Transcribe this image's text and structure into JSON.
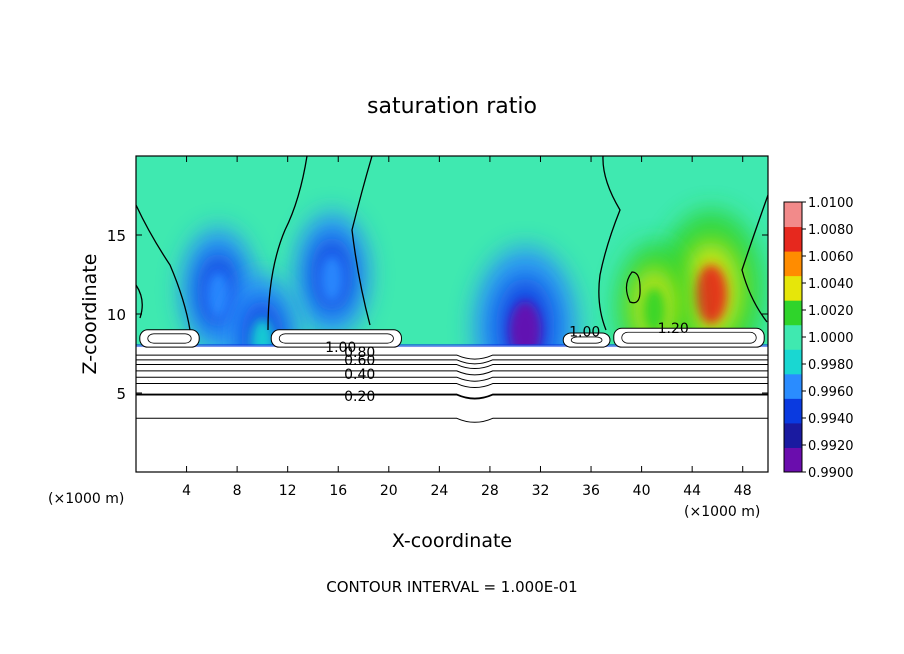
{
  "chart_data": {
    "type": "heatmap",
    "title": "saturation ratio",
    "xlabel": "X-coordinate",
    "ylabel": "Z-coordinate",
    "x_unit_left": "(×1000 m)",
    "x_unit_right": "(×1000 m)",
    "xlim": [
      0,
      50
    ],
    "ylim": [
      0,
      20
    ],
    "x_ticks": [
      4,
      8,
      12,
      16,
      20,
      24,
      28,
      32,
      36,
      40,
      44,
      48
    ],
    "x_tick_labels": [
      "4",
      "8",
      "12",
      "16",
      "20",
      "24",
      "28",
      "32",
      "36",
      "40",
      "44",
      "48"
    ],
    "y_ticks": [
      5,
      10,
      15
    ],
    "y_tick_labels": [
      "5",
      "10",
      "15"
    ],
    "footer": "CONTOUR INTERVAL = 1.000E-01",
    "colorbar": {
      "levels": [
        0.99,
        0.992,
        0.994,
        0.996,
        0.998,
        1.0,
        1.002,
        1.004,
        1.006,
        1.008,
        1.01
      ],
      "labels": [
        "0.9900",
        "0.9920",
        "0.9940",
        "0.9960",
        "0.9980",
        "1.0000",
        "1.0020",
        "1.0040",
        "1.0060",
        "1.0080",
        "1.0100"
      ],
      "colors": [
        "#6a0dad",
        "#1a1aa0",
        "#0a3ae0",
        "#2a8cff",
        "#19d7d2",
        "#3fe9b0",
        "#2fd42b",
        "#e6e60a",
        "#ff8c00",
        "#e6281e",
        "#f28a8a"
      ]
    },
    "contour_labels": [
      {
        "text": "0.20",
        "x": 17.7,
        "z": 4.8
      },
      {
        "text": "0.40",
        "x": 17.7,
        "z": 6.2
      },
      {
        "text": "0.60",
        "x": 17.7,
        "z": 7.1
      },
      {
        "text": "0.80",
        "x": 17.7,
        "z": 7.6
      },
      {
        "text": "1.00",
        "x": 16.2,
        "z": 7.9
      },
      {
        "text": "1.00",
        "x": 35.5,
        "z": 8.9
      },
      {
        "text": "1.20",
        "x": 42.5,
        "z": 9.1
      }
    ],
    "layer_contours_z": [
      3.4,
      4.9,
      5.6,
      6.0,
      6.4,
      6.8,
      7.1,
      7.4
    ],
    "anomalies": [
      {
        "x": 45.5,
        "z": 11.5,
        "value": 1.01
      },
      {
        "x": 30.8,
        "z": 9.2,
        "value": 0.992
      },
      {
        "x": 6.5,
        "z": 11.5,
        "value": 0.9965
      },
      {
        "x": 15.5,
        "z": 12.5,
        "value": 0.9975
      },
      {
        "x": 41.0,
        "z": 10.5,
        "value": 1.003
      },
      {
        "x": 10.0,
        "z": 8.5,
        "value": 0.9985
      }
    ],
    "cloud_regions": [
      {
        "x0": 0.3,
        "x1": 5.0,
        "z0": 7.9,
        "z1": 9.0
      },
      {
        "x0": 10.7,
        "x1": 21.0,
        "z0": 7.9,
        "z1": 9.0
      },
      {
        "x0": 33.8,
        "x1": 37.5,
        "z0": 7.9,
        "z1": 8.8
      },
      {
        "x0": 37.8,
        "x1": 49.7,
        "z0": 7.9,
        "z1": 9.1
      }
    ]
  }
}
